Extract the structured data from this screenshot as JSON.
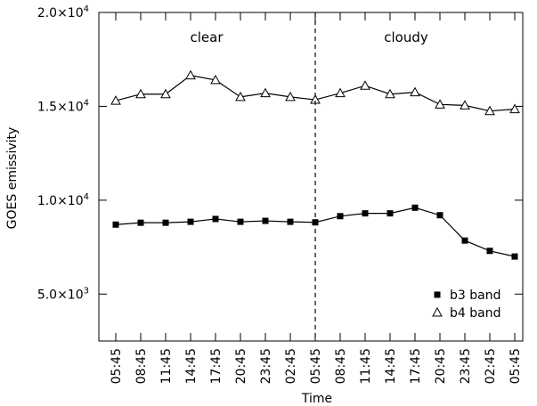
{
  "chart_data": {
    "type": "line",
    "title": "",
    "xlabel": "Time",
    "ylabel": "GOES emissivity",
    "categories": [
      "05:45",
      "08:45",
      "11:45",
      "14:45",
      "17:45",
      "20:45",
      "23:45",
      "02:45",
      "05:45",
      "08:45",
      "11:45",
      "14:45",
      "17:45",
      "20:45",
      "23:45",
      "02:45",
      "05:45"
    ],
    "ylim": [
      2500,
      20000
    ],
    "y_ticks": [
      {
        "value": 5000,
        "mantissa": "5.0",
        "exponent": "3"
      },
      {
        "value": 10000,
        "mantissa": "1.0",
        "exponent": "4"
      },
      {
        "value": 15000,
        "mantissa": "1.5",
        "exponent": "4"
      },
      {
        "value": 20000,
        "mantissa": "2.0",
        "exponent": "4"
      }
    ],
    "tick_times_symbol": "×10",
    "divider_index": 8,
    "regions": [
      {
        "label": "clear",
        "center_index": 4
      },
      {
        "label": "cloudy",
        "center_index": 12
      }
    ],
    "series": [
      {
        "name": "b3 band",
        "marker": "square",
        "values": [
          8700,
          8800,
          8800,
          8850,
          9000,
          8850,
          8900,
          8850,
          8820,
          9150,
          9300,
          9300,
          9600,
          9200,
          7850,
          7300,
          7000
        ]
      },
      {
        "name": "b4 band",
        "marker": "triangle",
        "values": [
          15300,
          15650,
          15650,
          16650,
          16400,
          15500,
          15700,
          15500,
          15350,
          15700,
          16100,
          15650,
          15750,
          15100,
          15050,
          14750,
          14850
        ]
      }
    ],
    "legend_position": "bottom-right",
    "grid": false
  }
}
